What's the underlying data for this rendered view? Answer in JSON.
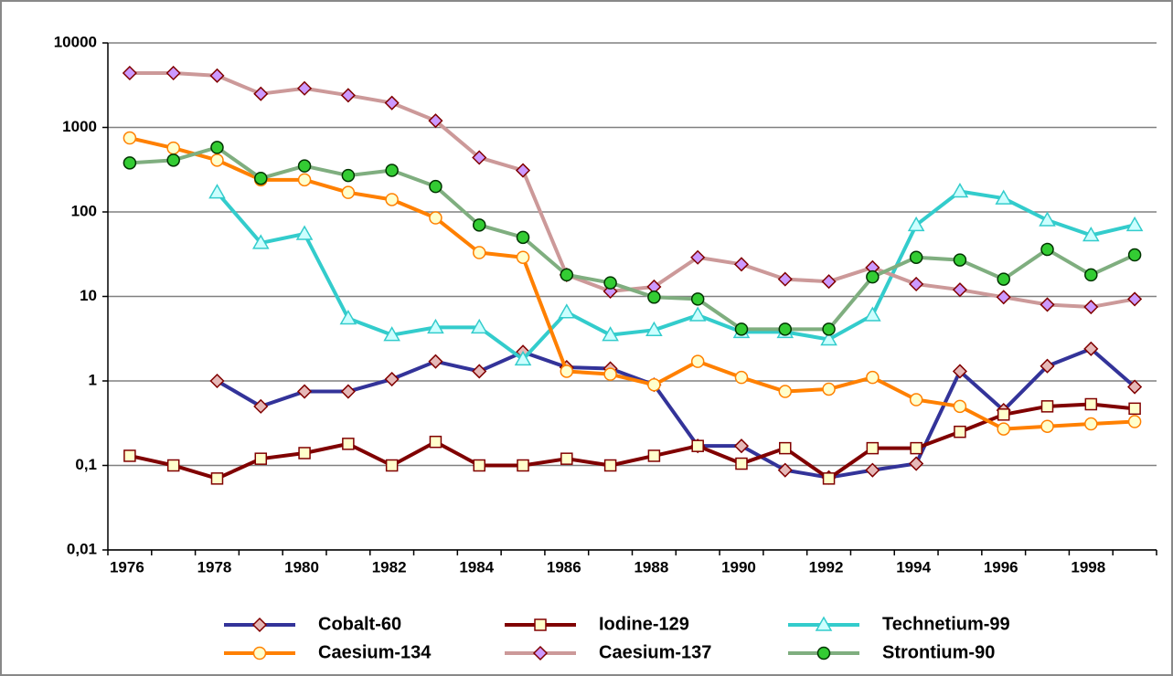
{
  "chart_data": {
    "type": "line",
    "log_scale": true,
    "grid": true,
    "categories": [
      1976,
      null,
      1978,
      null,
      1980,
      null,
      1982,
      null,
      1984,
      null,
      1986,
      null,
      1988,
      null,
      1990,
      null,
      1992,
      null,
      1994,
      null,
      1996,
      null,
      1998,
      null
    ],
    "ylim": [
      0.01,
      10000
    ],
    "yticks": [
      {
        "value": 0.01,
        "label": "0,01"
      },
      {
        "value": 0.1,
        "label": "0,1"
      },
      1,
      10,
      100,
      1000,
      10000
    ],
    "series": [
      {
        "name": "Cobalt-60",
        "color": "#333399",
        "marker": "diamond",
        "marker_color": "#e6b8b7",
        "values": [
          null,
          null,
          1,
          0.5,
          0.75,
          0.75,
          1.05,
          1.7,
          1.3,
          2.2,
          1.45,
          1.4,
          0.9,
          0.17,
          0.17,
          0.088,
          0.072,
          0.088,
          0.105,
          1.3,
          0.45,
          1.5,
          2.4,
          0.85
        ]
      },
      {
        "name": "Iodine-129",
        "color": "#800000",
        "marker": "square",
        "marker_color": "#ffffcc",
        "values": [
          0.13,
          0.1,
          0.07,
          0.12,
          0.14,
          0.18,
          0.1,
          0.19,
          0.1,
          0.1,
          0.12,
          0.1,
          0.13,
          0.17,
          0.105,
          0.16,
          0.07,
          0.16,
          0.16,
          0.25,
          0.4,
          0.5,
          0.53,
          0.47
        ]
      },
      {
        "name": "Technetium-99",
        "color": "#33cccc",
        "marker": "triangle",
        "marker_color": "#ccffff",
        "values": [
          null,
          null,
          170,
          43,
          55,
          5.5,
          3.5,
          4.3,
          4.3,
          1.8,
          6.5,
          3.5,
          4,
          6,
          3.8,
          3.8,
          3.1,
          6,
          70,
          175,
          145,
          80,
          53,
          70
        ]
      },
      {
        "name": "Caesium-134",
        "color": "#ff8000",
        "marker": "circle",
        "marker_color": "#ffffcc",
        "values": [
          750,
          570,
          410,
          240,
          240,
          170,
          140,
          85,
          33,
          29,
          1.3,
          1.2,
          0.9,
          1.7,
          1.1,
          0.75,
          0.8,
          1.1,
          0.6,
          0.5,
          0.27,
          0.29,
          0.31,
          0.33
        ]
      },
      {
        "name": "Caesium-137",
        "color": "#cc9999",
        "marker": "diamond",
        "marker_color": "#cc99ff",
        "values": [
          4400,
          4400,
          4100,
          2500,
          2900,
          2400,
          1950,
          1200,
          440,
          310,
          18,
          11.5,
          13,
          29,
          24,
          16,
          15,
          22,
          14,
          12,
          9.8,
          8,
          7.5,
          9.3
        ]
      },
      {
        "name": "Strontium-90",
        "color": "#7fae7f",
        "marker": "circle",
        "marker_color": "#33cc33",
        "values": [
          380,
          410,
          580,
          250,
          350,
          270,
          310,
          200,
          70,
          50,
          18,
          14.5,
          9.8,
          9.3,
          4.1,
          4.1,
          4.1,
          17,
          29,
          27,
          16,
          36,
          18,
          31
        ]
      }
    ],
    "legend": "bottom"
  }
}
